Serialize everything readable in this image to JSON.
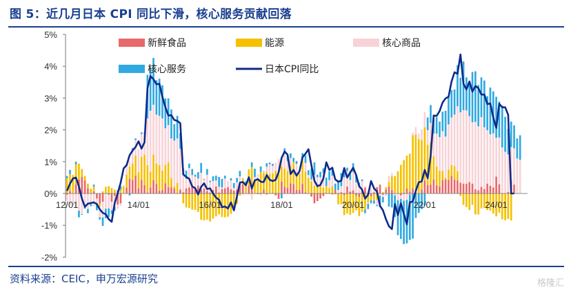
{
  "header": {
    "title": "图 5：近几月日本 CPI 同比下滑，核心服务贡献回落"
  },
  "footer": {
    "source": "资料来源：CEIC，申万宏源研究",
    "watermark": "格隆汇"
  },
  "colors": {
    "fresh_food": "#e8696b",
    "energy": "#f5c000",
    "core_goods": "#f7d3d8",
    "core_services": "#2fa9e0",
    "cpi_line": "#0d2a8a",
    "title": "#1a3f8f"
  },
  "chart_data": {
    "type": "bar",
    "stacked": true,
    "title": "",
    "xlabel": "",
    "ylabel": "",
    "ylim": [
      -2,
      5
    ],
    "yticks": [
      -2,
      -1,
      0,
      1,
      2,
      3,
      4,
      5
    ],
    "ytick_labels": [
      "-2%",
      "-1%",
      "0%",
      "1%",
      "2%",
      "3%",
      "4%",
      "5%"
    ],
    "x_tick_labels": [
      "12/01",
      "14/01",
      "16/01",
      "18/01",
      "20/01",
      "22/01",
      "24/01"
    ],
    "x_tick_index": [
      0,
      24,
      48,
      72,
      96,
      120,
      144
    ],
    "months": [
      "2012-01",
      "2012-02",
      "2012-03",
      "2012-04",
      "2012-05",
      "2012-06",
      "2012-07",
      "2012-08",
      "2012-09",
      "2012-10",
      "2012-11",
      "2012-12",
      "2013-01",
      "2013-02",
      "2013-03",
      "2013-04",
      "2013-05",
      "2013-06",
      "2013-07",
      "2013-08",
      "2013-09",
      "2013-10",
      "2013-11",
      "2013-12",
      "2014-01",
      "2014-02",
      "2014-03",
      "2014-04",
      "2014-05",
      "2014-06",
      "2014-07",
      "2014-08",
      "2014-09",
      "2014-10",
      "2014-11",
      "2014-12",
      "2015-01",
      "2015-02",
      "2015-03",
      "2015-04",
      "2015-05",
      "2015-06",
      "2015-07",
      "2015-08",
      "2015-09",
      "2015-10",
      "2015-11",
      "2015-12",
      "2016-01",
      "2016-02",
      "2016-03",
      "2016-04",
      "2016-05",
      "2016-06",
      "2016-07",
      "2016-08",
      "2016-09",
      "2016-10",
      "2016-11",
      "2016-12",
      "2017-01",
      "2017-02",
      "2017-03",
      "2017-04",
      "2017-05",
      "2017-06",
      "2017-07",
      "2017-08",
      "2017-09",
      "2017-10",
      "2017-11",
      "2017-12",
      "2018-01",
      "2018-02",
      "2018-03",
      "2018-04",
      "2018-05",
      "2018-06",
      "2018-07",
      "2018-08",
      "2018-09",
      "2018-10",
      "2018-11",
      "2018-12",
      "2019-01",
      "2019-02",
      "2019-03",
      "2019-04",
      "2019-05",
      "2019-06",
      "2019-07",
      "2019-08",
      "2019-09",
      "2019-10",
      "2019-11",
      "2019-12",
      "2020-01",
      "2020-02",
      "2020-03",
      "2020-04",
      "2020-05",
      "2020-06",
      "2020-07",
      "2020-08",
      "2020-09",
      "2020-10",
      "2020-11",
      "2020-12",
      "2021-01",
      "2021-02",
      "2021-03",
      "2021-04",
      "2021-05",
      "2021-06",
      "2021-07",
      "2021-08",
      "2021-09",
      "2021-10",
      "2021-11",
      "2021-12",
      "2022-01",
      "2022-02",
      "2022-03",
      "2022-04",
      "2022-05",
      "2022-06",
      "2022-07",
      "2022-08",
      "2022-09",
      "2022-10",
      "2022-11",
      "2022-12",
      "2023-01",
      "2023-02",
      "2023-03",
      "2023-04",
      "2023-05",
      "2023-06",
      "2023-07",
      "2023-08",
      "2023-09",
      "2023-10",
      "2023-11",
      "2023-12",
      "2024-01",
      "2024-02",
      "2024-03",
      "2024-04",
      "2024-05",
      "2024-06",
      "2024-07",
      "2024-08",
      "2024-09",
      "2024-10",
      "2024-11"
    ],
    "legend": {
      "placement": "top",
      "items": [
        "新鲜食品",
        "能源",
        "核心商品",
        "核心服务",
        "日本CPI同比"
      ]
    },
    "series": [
      {
        "name": "新鲜食品",
        "kind": "bar",
        "values": [
          -0.04,
          0.08,
          0.0,
          0.29,
          0.44,
          0.52,
          0.41,
          0.16,
          0.01,
          0.07,
          -0.16,
          -0.32,
          -0.26,
          -0.01,
          -0.04,
          -0.26,
          -0.08,
          -0.35,
          -0.31,
          0.0,
          0.18,
          0.46,
          0.42,
          0.56,
          0.16,
          0.42,
          0.26,
          0.03,
          0.19,
          0.42,
          0.3,
          0.09,
          0.11,
          0.32,
          0.2,
          0.2,
          0.15,
          0.02,
          0.12,
          0.04,
          0.16,
          0.19,
          0.22,
          0.17,
          0.25,
          0.12,
          0.15,
          0.08,
          0.03,
          0.11,
          0.22,
          0.03,
          0.14,
          0.16,
          0.2,
          0.13,
          0.09,
          0.12,
          0.29,
          0.29,
          0.0,
          0.25,
          0.28,
          0.0,
          -0.01,
          0.03,
          0.12,
          -0.03,
          -0.01,
          0.02,
          -0.06,
          -0.17,
          0.37,
          0.21,
          0.18,
          0.32,
          0.29,
          0.11,
          0.11,
          0.3,
          0.04,
          -0.01,
          -0.1,
          -0.31,
          -0.24,
          -0.16,
          -0.08,
          0.02,
          0.02,
          -0.03,
          0.11,
          -0.03,
          0.04,
          -0.05,
          0.22,
          0.06,
          0.1,
          -0.07,
          -0.11,
          0.1,
          0.19,
          0.0,
          -0.09,
          0.04,
          0.2,
          0.26,
          -0.04,
          0.12,
          0.22,
          0.11,
          -0.01,
          -0.0,
          -0.06,
          0.03,
          0.16,
          0.06,
          0.16,
          0.02,
          0.01,
          0.12,
          0.4,
          0.26,
          0.27,
          0.44,
          0.26,
          0.22,
          0.42,
          0.44,
          0.43,
          0.55,
          0.44,
          0.41,
          0.34,
          0.31,
          0.31,
          0.36,
          0.31,
          0.13,
          0.1,
          0.21,
          0.14,
          0.31,
          0.24,
          0.19,
          0.53,
          0.29,
          0.0,
          -0.0,
          0.05,
          0.4,
          0.28
        ]
      },
      {
        "name": "能源",
        "kind": "bar",
        "values": [
          0.48,
          0.53,
          0.58,
          0.63,
          0.5,
          0.25,
          0.14,
          0.15,
          0.14,
          0.15,
          0.01,
          -0.09,
          0.07,
          0.21,
          0.23,
          0.17,
          0.12,
          0.02,
          0.12,
          0.22,
          0.42,
          0.39,
          0.52,
          0.63,
          0.51,
          0.73,
          0.96,
          0.86,
          0.49,
          0.81,
          0.64,
          0.8,
          0.61,
          0.58,
          0.78,
          0.28,
          0.07,
          0.31,
          -0.01,
          -0.31,
          -0.44,
          -0.46,
          -0.51,
          -0.52,
          -0.58,
          -0.83,
          -0.85,
          -0.82,
          -0.88,
          -0.79,
          -0.72,
          -0.66,
          -0.74,
          -0.75,
          -0.73,
          -0.64,
          -0.54,
          -0.33,
          -0.07,
          0.18,
          0.31,
          0.51,
          0.55,
          0.45,
          0.4,
          0.65,
          0.53,
          0.68,
          0.61,
          0.61,
          0.72,
          0.62,
          0.48,
          0.57,
          0.53,
          0.54,
          0.7,
          0.53,
          0.51,
          0.74,
          0.65,
          0.49,
          0.38,
          0.24,
          0.21,
          0.26,
          0.18,
          0.22,
          0.15,
          0.23,
          -0.03,
          -0.31,
          -0.34,
          -0.63,
          -0.63,
          -0.67,
          -0.61,
          -0.46,
          -0.6,
          -0.58,
          -0.51,
          -0.28,
          -0.12,
          -0.22,
          -0.2,
          0.03,
          0.04,
          0.08,
          0.14,
          0.43,
          0.55,
          0.7,
          0.9,
          1.02,
          1.03,
          1.19,
          1.67,
          1.83,
          1.7,
          1.56,
          1.68,
          1.27,
          1.34,
          0.73,
          0.59,
          0.49,
          0.29,
          0.05,
          0.32,
          0.34,
          0.42,
          0.29,
          -0.08,
          -0.36,
          -0.43,
          -0.52,
          -0.36,
          -0.66,
          -0.66,
          -0.47,
          -0.46,
          -0.52,
          -0.54,
          -0.63,
          -0.72,
          -0.61,
          -0.81,
          -0.84,
          -0.8,
          -0.85,
          0.0,
          0.0
        ]
      },
      {
        "name": "核心商品",
        "kind": "bar",
        "values": [
          -0.19,
          -0.38,
          -0.34,
          -0.44,
          -0.54,
          -0.65,
          -0.43,
          -0.49,
          -0.33,
          -0.4,
          -0.18,
          -0.34,
          -0.49,
          -0.47,
          -0.43,
          -0.27,
          -0.35,
          -0.13,
          -0.08,
          0.05,
          0.26,
          0.18,
          0.38,
          0.49,
          0.73,
          0.72,
          0.67,
          1.47,
          1.92,
          1.56,
          1.54,
          1.55,
          1.64,
          1.15,
          1.17,
          1.25,
          1.44,
          1.4,
          1.29,
          0.56,
          0.3,
          0.61,
          0.36,
          0.36,
          0.22,
          0.53,
          0.29,
          0.51,
          0.33,
          0.28,
          0.19,
          0.18,
          0.05,
          0.31,
          0.19,
          0.28,
          0.08,
          0.23,
          0.25,
          -0.04,
          0.01,
          -0.03,
          -0.2,
          0.07,
          0.2,
          -0.06,
          0.05,
          0.16,
          0.31,
          0.24,
          0.25,
          0.46,
          0.3,
          0.52,
          0.31,
          0.25,
          -0.04,
          0.29,
          0.12,
          0.05,
          0.27,
          0.09,
          0.06,
          0.35,
          0.3,
          0.25,
          0.47,
          0.0,
          0.25,
          0.33,
          -0.0,
          0.11,
          0.19,
          0.51,
          0.49,
          0.36,
          0.58,
          0.35,
          0.25,
          0.29,
          0.05,
          -0.04,
          0.14,
          0.18,
          -0.16,
          -0.07,
          -0.07,
          -0.05,
          0.2,
          0.1,
          -0.05,
          -0.21,
          -0.11,
          -0.23,
          -0.2,
          -0.03,
          0.08,
          0.24,
          0.17,
          0.34,
          0.48,
          0.46,
          0.61,
          0.71,
          1.03,
          1.06,
          1.25,
          1.3,
          1.42,
          1.5,
          1.62,
          2.04,
          2.21,
          2.31,
          2.3,
          2.07,
          1.93,
          2.12,
          2.01,
          2.19,
          1.94,
          1.68,
          1.62,
          1.7,
          1.22,
          1.47,
          1.45,
          1.31,
          1.18,
          1.06,
          1.14,
          1.1,
          1.06
        ]
      },
      {
        "name": "核心服务",
        "kind": "bar",
        "values": [
          0.07,
          0.13,
          -0.02,
          0.08,
          -0.21,
          -0.02,
          -0.05,
          -0.13,
          -0.07,
          0.06,
          -0.19,
          -0.07,
          -0.27,
          -0.3,
          -0.27,
          -0.11,
          -0.11,
          0.08,
          0.11,
          -0.01,
          0.07,
          -0.06,
          0.11,
          0.05,
          0.0,
          0.05,
          0.03,
          1.37,
          1.35,
          1.47,
          1.08,
          1.17,
          1.04,
          0.94,
          0.84,
          0.91,
          0.52,
          0.71,
          0.49,
          0.18,
          0.26,
          0.14,
          0.19,
          0.06,
          0.2,
          0.31,
          0.02,
          0.18,
          0.04,
          0.15,
          0.15,
          0.31,
          0.27,
          0.09,
          0.0,
          0.07,
          0.16,
          0.14,
          0.17,
          0.01,
          0.06,
          0.0,
          0.15,
          0.26,
          -0.01,
          0.17,
          0.01,
          0.11,
          0.05,
          0.06,
          0.0,
          0.0,
          -0.15,
          0.12,
          0.17,
          0.15,
          0.13,
          0.09,
          0.01,
          0.18,
          0.24,
          0.15,
          0.34,
          0.39,
          0.08,
          0.17,
          0.14,
          0.26,
          0.28,
          0.18,
          0.2,
          0.3,
          0.41,
          0.28,
          0.1,
          0.28,
          0.27,
          0.23,
          0.09,
          0.05,
          -0.11,
          -0.17,
          -0.1,
          -0.1,
          -0.04,
          -0.36,
          -0.17,
          -0.01,
          -0.41,
          -0.44,
          -0.68,
          -1.1,
          -1.26,
          -1.36,
          -1.37,
          -1.43,
          -1.42,
          -0.77,
          -0.61,
          -0.49,
          -0.38,
          0.4,
          0.56,
          0.48,
          0.52,
          0.49,
          0.61,
          0.81,
          0.87,
          0.86,
          0.79,
          1.29,
          1.09,
          1.53,
          1.04,
          1.08,
          1.58,
          1.59,
          1.3,
          1.25,
          1.47,
          1.07,
          1.47,
          1.32,
          1.29,
          1.13,
          1.31,
          1.1,
          0.8,
          0.8,
          0.72,
          0.63,
          0.77
        ]
      },
      {
        "name": "日本CPI同比",
        "kind": "line",
        "values": [
          0.08,
          0.31,
          0.47,
          0.5,
          0.22,
          -0.16,
          -0.42,
          -0.32,
          -0.3,
          -0.28,
          -0.33,
          -0.5,
          -0.61,
          -0.65,
          -0.81,
          -0.89,
          -0.3,
          -0.0,
          0.34,
          0.79,
          0.89,
          1.2,
          1.35,
          1.46,
          1.64,
          1.41,
          1.61,
          3.31,
          3.69,
          3.59,
          3.43,
          3.45,
          3.04,
          2.71,
          2.45,
          2.46,
          2.31,
          2.28,
          2.21,
          0.6,
          0.52,
          0.46,
          0.22,
          0.17,
          -0.03,
          0.21,
          0.32,
          0.14,
          0.16,
          -0.0,
          -0.13,
          -0.2,
          -0.43,
          -0.41,
          -0.47,
          -0.28,
          -0.53,
          -0.1,
          0.34,
          0.36,
          0.26,
          0.51,
          0.16,
          0.41,
          0.45,
          0.37,
          0.36,
          0.58,
          0.43,
          0.39,
          0.43,
          0.67,
          1.12,
          1.32,
          1.22,
          0.61,
          0.74,
          0.56,
          0.7,
          1.14,
          1.25,
          1.39,
          0.88,
          0.4,
          0.23,
          0.27,
          0.47,
          0.98,
          0.74,
          0.81,
          0.44,
          0.37,
          0.4,
          0.8,
          0.5,
          0.66,
          0.81,
          0.58,
          0.23,
          0.12,
          -0.16,
          -0.04,
          0.39,
          0.16,
          0.06,
          -0.39,
          -0.53,
          -0.81,
          -1.03,
          -1.12,
          -0.33,
          -0.68,
          -0.31,
          -0.64,
          -0.97,
          -0.28,
          -0.25,
          0.08,
          0.35,
          0.38,
          0.74,
          0.48,
          1.19,
          2.45,
          2.44,
          2.59,
          2.86,
          2.99,
          3.04,
          3.52,
          3.81,
          3.76,
          4.37,
          3.45,
          3.27,
          3.52,
          3.2,
          3.38,
          3.31,
          3.11,
          3.11,
          2.81,
          2.83,
          2.39,
          2.06,
          2.82,
          2.71,
          2.71,
          2.47,
          0.0,
          0.0
        ]
      }
    ]
  }
}
